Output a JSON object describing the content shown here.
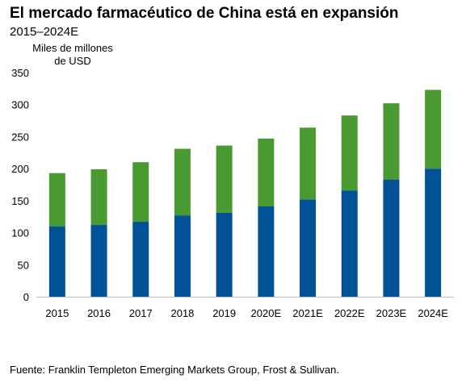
{
  "chart_data": {
    "type": "bar",
    "stacked": true,
    "title": "El mercado farmacéutico de China está en expansión",
    "subtitle": "2015–2024E",
    "ylabel": "Miles de millones de USD",
    "ylim": [
      0,
      350
    ],
    "yticks": [
      0,
      50,
      100,
      150,
      200,
      250,
      300,
      350
    ],
    "categories": [
      "2015",
      "2016",
      "2017",
      "2018",
      "2019",
      "2020E",
      "2021E",
      "2022E",
      "2023E",
      "2024E"
    ],
    "series": [
      {
        "values": [
          110,
          112,
          117,
          127,
          131,
          141,
          152,
          166,
          183,
          200
        ]
      },
      {
        "values": [
          83,
          87,
          93,
          104,
          105,
          106,
          112,
          117,
          119,
          123
        ]
      }
    ],
    "colors": [
      "#005195",
      "#4a9a32"
    ],
    "grid": false,
    "legend": "none"
  },
  "source": "Fuente: Franklin Templeton Emerging Markets Group, Frost & Sullivan."
}
